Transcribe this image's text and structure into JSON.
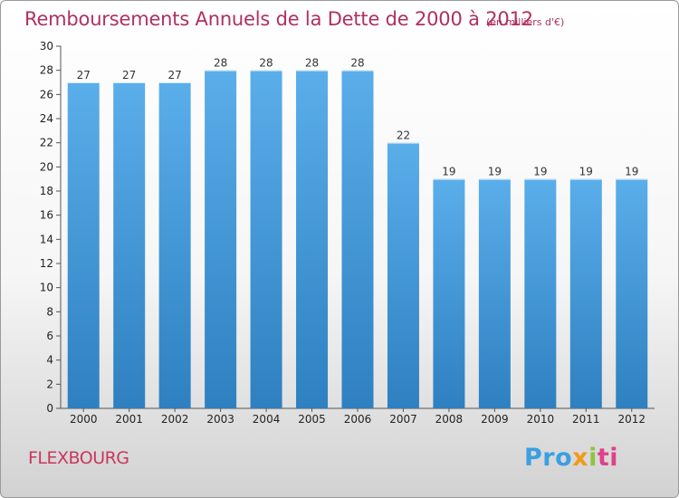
{
  "chart_data": {
    "type": "bar",
    "title": "Remboursements Annuels de la Dette de 2000 à 2012",
    "unit": "(en milliers d'€)",
    "categories": [
      "2000",
      "2001",
      "2002",
      "2003",
      "2004",
      "2005",
      "2006",
      "2007",
      "2008",
      "2009",
      "2010",
      "2011",
      "2012"
    ],
    "values": [
      27,
      27,
      27,
      28,
      28,
      28,
      28,
      22,
      19,
      19,
      19,
      19,
      19
    ],
    "ylim": [
      0,
      30
    ],
    "yticks": [
      0,
      2,
      4,
      6,
      8,
      10,
      12,
      14,
      16,
      18,
      20,
      22,
      24,
      26,
      28,
      30
    ],
    "grid": false,
    "bar_color": "#4a9ede"
  },
  "commune": "FLEXBOURG",
  "logo": {
    "p1": "Pro",
    "p2": "x",
    "p3": "i",
    "p4": "ti"
  }
}
